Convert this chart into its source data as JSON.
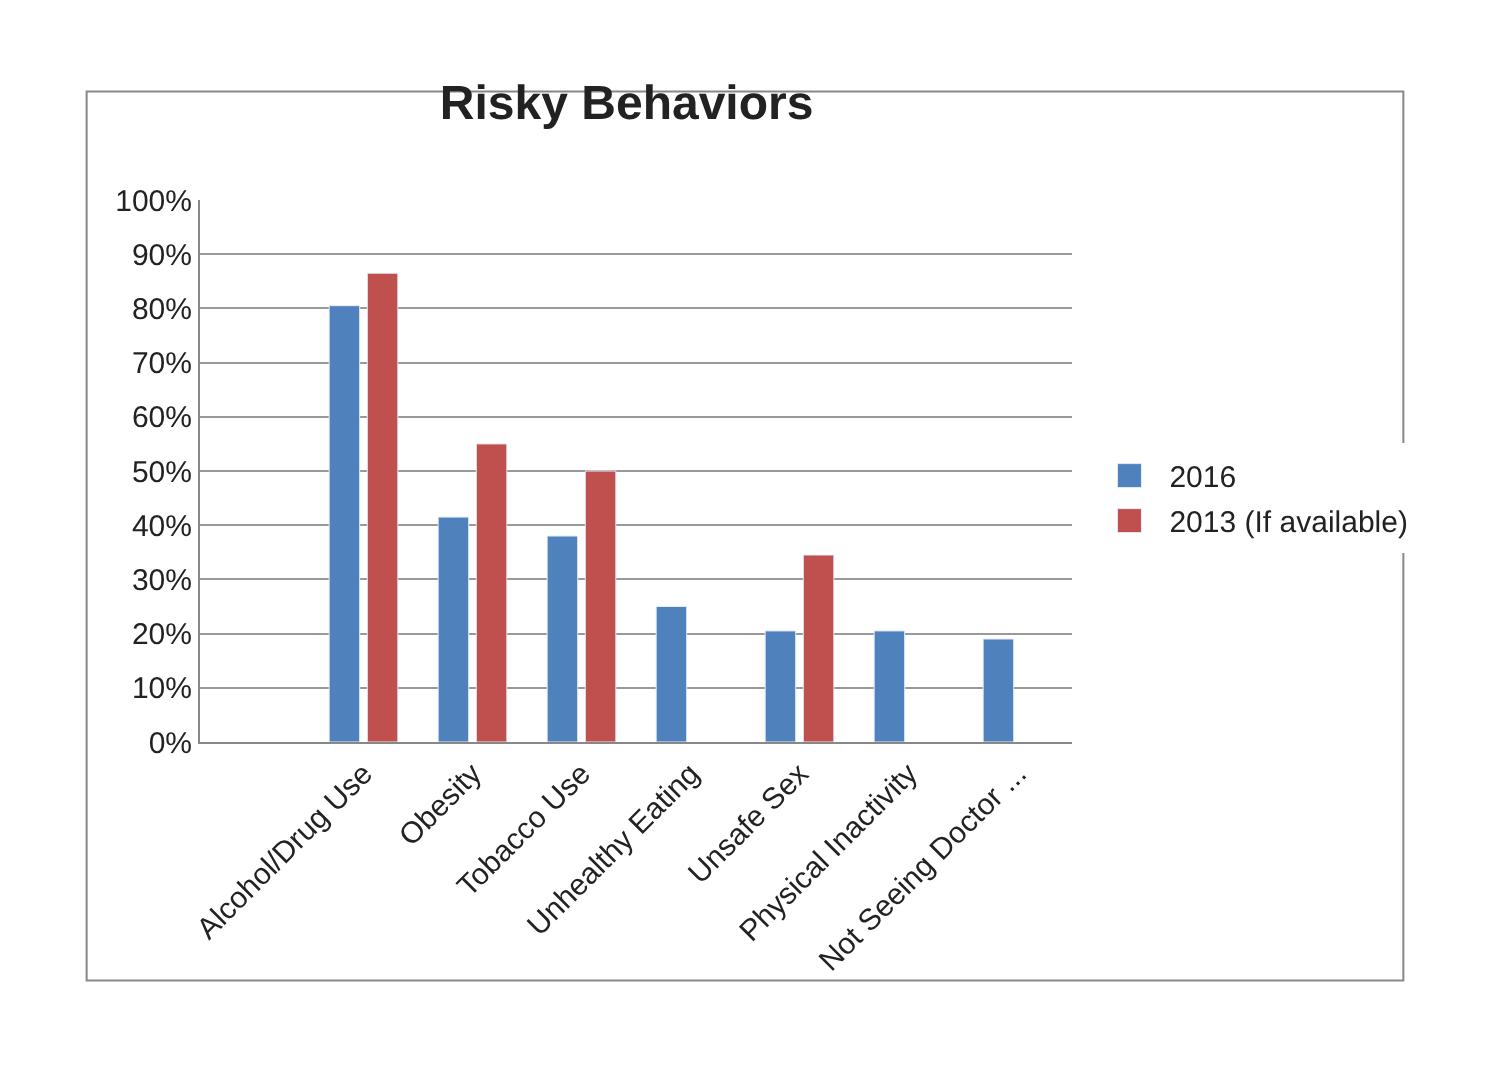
{
  "chart_data": {
    "type": "bar",
    "title": "Risky Behaviors",
    "categories": [
      null,
      "Alcohol/Drug Use",
      "Obesity",
      "Tobacco Use",
      "Unhealthy Eating",
      "Unsafe Sex",
      "Physical Inactivity",
      "Not Seeing Doctor ..."
    ],
    "series": [
      {
        "name": "2016",
        "color": "#4f81bd",
        "values": [
          null,
          80.5,
          41.5,
          38,
          25,
          20.5,
          20.5,
          19
        ]
      },
      {
        "name": "2013 (If available)",
        "color": "#c0504d",
        "values": [
          null,
          86.5,
          55,
          50,
          null,
          34.5,
          null,
          null
        ]
      }
    ],
    "ylim": [
      0,
      100
    ],
    "yticks": [
      {
        "value": 0,
        "label": "0%"
      },
      {
        "value": 10,
        "label": "10%"
      },
      {
        "value": 20,
        "label": "20%"
      },
      {
        "value": 30,
        "label": "30%"
      },
      {
        "value": 40,
        "label": "40%"
      },
      {
        "value": 50,
        "label": "50%"
      },
      {
        "value": 60,
        "label": "60%"
      },
      {
        "value": 70,
        "label": "70%"
      },
      {
        "value": 80,
        "label": "80%"
      },
      {
        "value": 90,
        "label": "90%"
      },
      {
        "value": 100,
        "label": "100%"
      }
    ],
    "grid": "y",
    "legend": "right"
  }
}
